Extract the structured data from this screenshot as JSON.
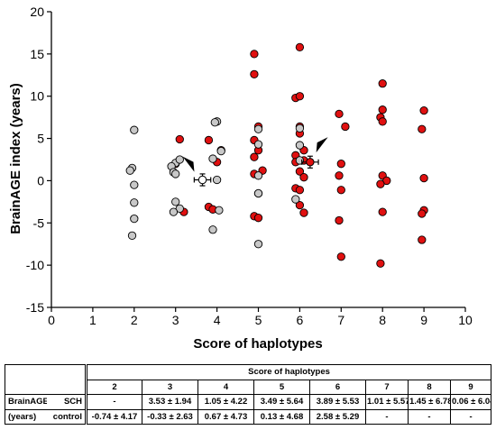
{
  "chart_data": {
    "type": "scatter",
    "xlabel": "Score of haplotypes",
    "ylabel": "BrainAGE index (years)",
    "xlim": [
      0,
      10
    ],
    "ylim": [
      -15,
      20
    ],
    "xticks": [
      0,
      1,
      2,
      3,
      4,
      5,
      6,
      7,
      8,
      9,
      10
    ],
    "yticks": [
      -15,
      -10,
      -5,
      0,
      5,
      10,
      15,
      20
    ],
    "grid": false,
    "series": [
      {
        "name": "SCH",
        "color": "#e01010",
        "points": [
          [
            3.1,
            4.9
          ],
          [
            3.2,
            -3.7
          ],
          [
            3.0,
            2.0
          ],
          [
            3.8,
            4.8
          ],
          [
            3.8,
            -3.1
          ],
          [
            4.0,
            2.2
          ],
          [
            4.1,
            3.6
          ],
          [
            3.9,
            -3.4
          ],
          [
            4.9,
            15.0
          ],
          [
            4.9,
            12.6
          ],
          [
            5.0,
            6.4
          ],
          [
            4.9,
            4.8
          ],
          [
            5.0,
            3.6
          ],
          [
            4.9,
            2.8
          ],
          [
            5.1,
            1.2
          ],
          [
            4.9,
            0.8
          ],
          [
            5.0,
            -1.5
          ],
          [
            4.9,
            -4.2
          ],
          [
            5.0,
            -4.4
          ],
          [
            6.0,
            15.8
          ],
          [
            5.9,
            9.8
          ],
          [
            6.0,
            10.0
          ],
          [
            6.0,
            6.4
          ],
          [
            6.0,
            5.6
          ],
          [
            6.1,
            3.6
          ],
          [
            5.9,
            3.0
          ],
          [
            6.1,
            2.4
          ],
          [
            5.9,
            2.2
          ],
          [
            6.0,
            1.1
          ],
          [
            6.1,
            0.4
          ],
          [
            5.9,
            -0.9
          ],
          [
            6.0,
            -1.1
          ],
          [
            6.0,
            -2.9
          ],
          [
            6.1,
            -3.8
          ],
          [
            6.95,
            7.9
          ],
          [
            7.1,
            6.4
          ],
          [
            7.0,
            2.0
          ],
          [
            6.95,
            0.6
          ],
          [
            7.0,
            -1.1
          ],
          [
            6.95,
            -4.7
          ],
          [
            7.0,
            -9.0
          ],
          [
            8.0,
            11.5
          ],
          [
            8.0,
            8.4
          ],
          [
            7.95,
            7.5
          ],
          [
            8.0,
            7.0
          ],
          [
            8.0,
            0.6
          ],
          [
            8.1,
            0.0
          ],
          [
            7.95,
            -0.4
          ],
          [
            8.0,
            -3.7
          ],
          [
            7.95,
            -9.8
          ],
          [
            9.0,
            8.3
          ],
          [
            8.95,
            6.1
          ],
          [
            9.0,
            0.3
          ],
          [
            9.0,
            -3.5
          ],
          [
            8.95,
            -3.9
          ],
          [
            8.95,
            -7.0
          ]
        ],
        "mean": {
          "x": 6.25,
          "y": 2.2,
          "err_x": 0.2,
          "err_y": 0.7
        }
      },
      {
        "name": "control",
        "color": "#c8c8c8",
        "points": [
          [
            2.0,
            6.0
          ],
          [
            1.95,
            1.5
          ],
          [
            1.9,
            1.2
          ],
          [
            2.0,
            -0.5
          ],
          [
            2.0,
            -2.6
          ],
          [
            2.0,
            -4.5
          ],
          [
            1.95,
            -6.5
          ],
          [
            3.0,
            2.1
          ],
          [
            2.9,
            1.7
          ],
          [
            3.1,
            2.5
          ],
          [
            2.95,
            1.0
          ],
          [
            3.0,
            0.8
          ],
          [
            3.0,
            -2.5
          ],
          [
            3.1,
            -3.3
          ],
          [
            2.95,
            -3.7
          ],
          [
            4.0,
            7.0
          ],
          [
            3.95,
            6.9
          ],
          [
            4.1,
            3.5
          ],
          [
            3.9,
            2.6
          ],
          [
            4.0,
            0.1
          ],
          [
            4.05,
            -3.5
          ],
          [
            3.9,
            -5.8
          ],
          [
            5.0,
            6.1
          ],
          [
            5.0,
            4.3
          ],
          [
            5.0,
            0.6
          ],
          [
            5.0,
            -1.5
          ],
          [
            5.0,
            -7.5
          ],
          [
            6.0,
            6.2
          ],
          [
            6.0,
            4.2
          ],
          [
            6.0,
            2.4
          ],
          [
            5.9,
            -2.2
          ]
        ],
        "mean": {
          "x": 3.65,
          "y": 0.1,
          "err_x": 0.2,
          "err_y": 0.7
        }
      }
    ],
    "annotations": [
      {
        "type": "arrowhead",
        "target": "control-mean",
        "x": 3.3,
        "y": 2.0
      },
      {
        "type": "arrowhead",
        "target": "SCH-mean",
        "x": 6.55,
        "y": 4.3
      }
    ]
  },
  "table": {
    "header": "Score of haplotypes",
    "scores": [
      "2",
      "3",
      "4",
      "5",
      "6",
      "7",
      "8",
      "9"
    ],
    "row1_label_a": "BrainAGE",
    "row1_label_b": "SCH",
    "row2_label_a": "(years)",
    "row2_label_b": "control",
    "sch": [
      "-",
      "3.53 ± 1.94",
      "1.05 ± 4.22",
      "3.49 ± 5.64",
      "3.89 ± 5.53",
      "1.01 ± 5.57",
      "1.45 ± 6.78",
      "0.06 ± 6.04"
    ],
    "control": [
      "-0.74 ± 4.17",
      "-0.33 ± 2.63",
      "0.67 ± 4.73",
      "0.13 ± 4.68",
      "2.58 ± 5.29",
      "-",
      "-",
      "-"
    ]
  }
}
